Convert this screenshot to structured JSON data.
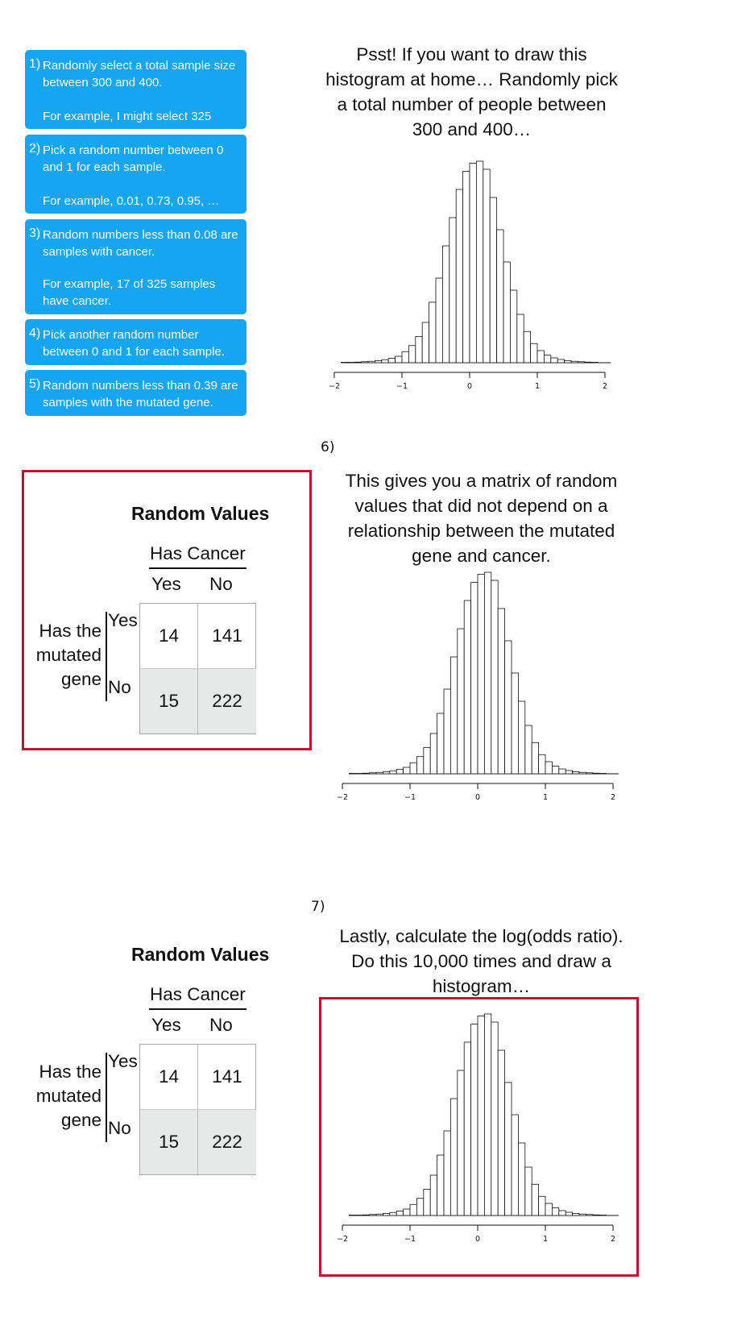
{
  "steps": [
    {
      "num": "1)",
      "text": "Randomly select a total sample size between 300 and 400.",
      "example": "For example, I might select 325"
    },
    {
      "num": "2)",
      "text": "Pick a random number between 0 and 1 for each sample.",
      "example": "For example, 0.01, 0.73, 0.95, …"
    },
    {
      "num": "3)",
      "text": "Random numbers less than 0.08 are samples with cancer.",
      "example": "For example, 17 of 325 samples have cancer."
    },
    {
      "num": "4)",
      "text": "Pick another random number between 0 and 1 for each sample.",
      "example": ""
    },
    {
      "num": "5)",
      "text": "Random numbers less than 0.39 are samples with the mutated gene.",
      "example": ""
    }
  ],
  "captions": {
    "top": "Psst! If you want to draw this histogram at home… Randomly pick a total number of people between 300 and 400…",
    "step6_label": "6)",
    "step6": "This gives you a matrix of random values that did not depend on a relationship between the mutated gene and cancer.",
    "step7_label": "7)",
    "step7": "Lastly, calculate the log(odds ratio). Do this 10,000 times and draw a histogram…"
  },
  "contingency_table": {
    "title": "Random Values",
    "col_header": "Has Cancer",
    "col_labels": [
      "Yes",
      "No"
    ],
    "row_header": "Has the mutated gene",
    "row_header_lines": [
      "Has the",
      "mutated",
      "gene"
    ],
    "row_labels": [
      "Yes",
      "No"
    ],
    "values": [
      [
        "14",
        "141"
      ],
      [
        "15",
        "222"
      ]
    ]
  },
  "colors": {
    "step_box": "#15a6f3",
    "highlight_frame": "#c8102e",
    "table_shaded": "#e7e8e8"
  },
  "chart_data": {
    "type": "bar",
    "title": "",
    "xlabel": "",
    "ylabel": "",
    "xlim": [
      -2,
      2
    ],
    "x_ticks": [
      -2,
      -1,
      0,
      1,
      2
    ],
    "bin_width": 0.1,
    "bin_start": -2.0,
    "values": [
      0.001,
      0.002,
      0.002,
      0.003,
      0.005,
      0.007,
      0.01,
      0.015,
      0.022,
      0.032,
      0.055,
      0.085,
      0.13,
      0.2,
      0.3,
      0.42,
      0.58,
      0.72,
      0.86,
      0.95,
      0.99,
      1.0,
      0.96,
      0.82,
      0.66,
      0.5,
      0.36,
      0.24,
      0.155,
      0.095,
      0.06,
      0.038,
      0.024,
      0.016,
      0.01,
      0.007,
      0.005,
      0.003,
      0.002,
      0.001
    ],
    "grid": false,
    "legend": "none"
  }
}
